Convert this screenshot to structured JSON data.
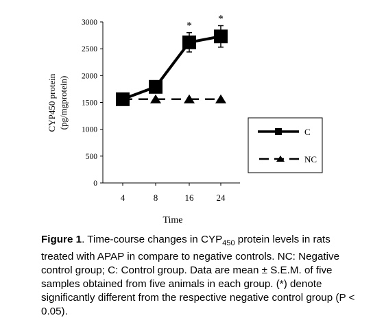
{
  "chart_data": {
    "type": "line",
    "categories": [
      "4",
      "8",
      "16",
      "24"
    ],
    "series": [
      {
        "name": "C",
        "values": [
          1560,
          1790,
          2620,
          2730
        ],
        "error": [
          0,
          0,
          180,
          200
        ],
        "marker": "square",
        "line": "solid"
      },
      {
        "name": "NC",
        "values": [
          1560,
          1560,
          1560,
          1560
        ],
        "marker": "triangle",
        "line": "dashed"
      }
    ],
    "ylabel_line1": "CYP450 protein",
    "ylabel_line2": "(pg/mgprotein)",
    "xlabel": "Time",
    "ylim": [
      0,
      3000
    ],
    "yticks": [
      "0",
      "500",
      "1000",
      "1500",
      "2000",
      "2500",
      "3000"
    ],
    "significance": [
      {
        "category": "16",
        "label": "*"
      },
      {
        "category": "24",
        "label": "*"
      }
    ],
    "grid": false,
    "legend": "right"
  },
  "caption": {
    "label": "Figure 1",
    "t1": ". Time-course changes in CYP",
    "sub": "450",
    "t2": " protein levels in rats treated with APAP in compare to negative controls. NC: Negative control group; C: Control group. Data are mean ± S.E.M. of five samples obtained from five animals in each group. (*) denote significantly different from the respective negative control group (P < 0.05)."
  }
}
